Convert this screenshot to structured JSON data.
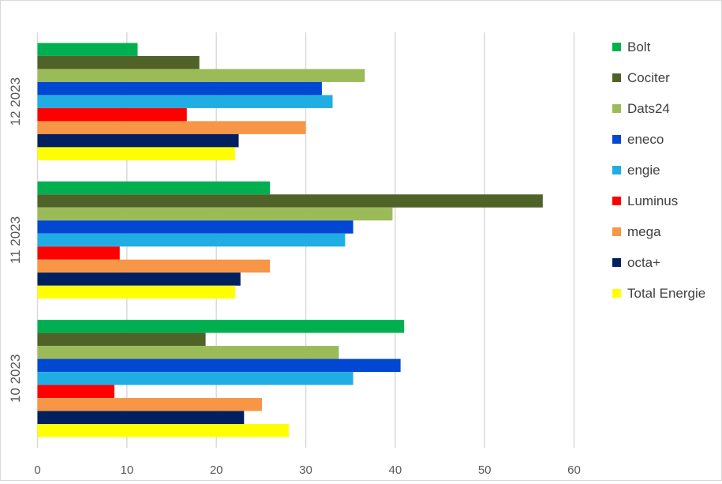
{
  "chart_data": {
    "type": "bar",
    "orientation": "horizontal",
    "categories": [
      "10 2023",
      "11 2023",
      "12 2023"
    ],
    "series": [
      {
        "name": "Bolt",
        "color": "#00b050",
        "values": [
          41.0,
          26.0,
          11.2
        ]
      },
      {
        "name": "Cociter",
        "color": "#4f6228",
        "values": [
          18.8,
          56.5,
          18.1
        ]
      },
      {
        "name": "Dats24",
        "color": "#9bbb59",
        "values": [
          33.7,
          39.7,
          36.6
        ]
      },
      {
        "name": "eneco",
        "color": "#0047d1",
        "values": [
          40.6,
          35.3,
          31.8
        ]
      },
      {
        "name": "engie",
        "color": "#20ade3",
        "values": [
          35.3,
          34.4,
          33.0
        ]
      },
      {
        "name": "Luminus",
        "color": "#ff0000",
        "values": [
          8.6,
          9.2,
          16.7
        ]
      },
      {
        "name": "mega",
        "color": "#f79646",
        "values": [
          25.1,
          26.0,
          30.0
        ]
      },
      {
        "name": "octa+",
        "color": "#002060",
        "values": [
          23.1,
          22.7,
          22.5
        ]
      },
      {
        "name": "Total Energie",
        "color": "#ffff00",
        "values": [
          28.1,
          22.1,
          22.1
        ]
      }
    ],
    "xlim": [
      0,
      60
    ],
    "xticks": [
      "0",
      "10",
      "20",
      "30",
      "40",
      "50",
      "60"
    ],
    "grid": true,
    "legend": "right",
    "title": "",
    "xlabel": "",
    "ylabel": ""
  }
}
